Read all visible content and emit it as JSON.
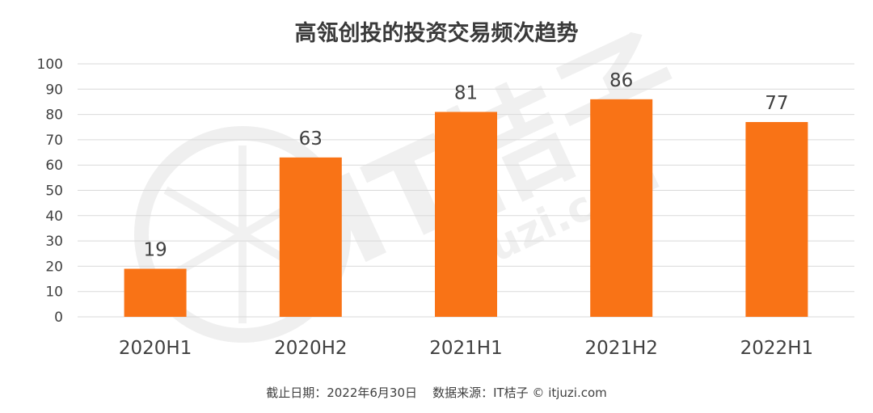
{
  "chart_data": {
    "type": "bar",
    "title": "高瓴创投的投资交易频次趋势",
    "categories": [
      "2020H1",
      "2020H2",
      "2021H1",
      "2021H2",
      "2022H1"
    ],
    "values": [
      19,
      63,
      81,
      86,
      77
    ],
    "ylim": [
      0,
      100
    ],
    "yticks": [
      0,
      10,
      20,
      30,
      40,
      50,
      60,
      70,
      80,
      90,
      100
    ],
    "bar_color": "#F97316",
    "grid": true,
    "legend": "none"
  },
  "footer": {
    "note": "截止日期：2022年6月30日    数据来源：IT桔子 © itjuzi.com"
  },
  "watermark": {
    "brand": "IT桔子",
    "site": "itjuzi.com"
  }
}
